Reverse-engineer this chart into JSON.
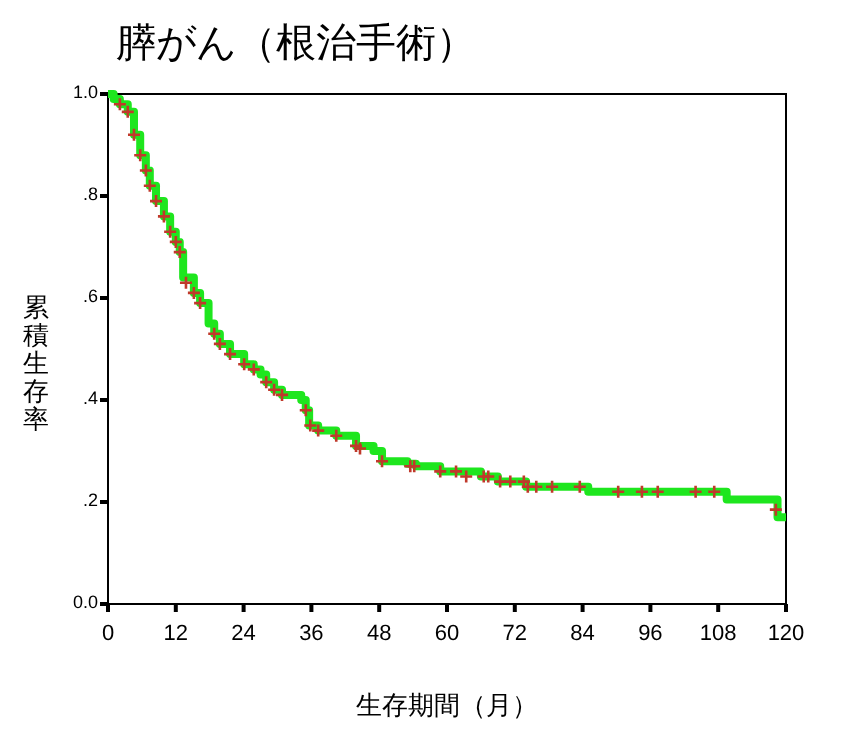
{
  "chart_data": {
    "type": "step",
    "title": "膵がん（根治手術）",
    "xlabel": "生存期間（月）",
    "ylabel": "累積生存率",
    "xlim": [
      0,
      120
    ],
    "ylim": [
      0,
      1
    ],
    "xticks": [
      0,
      12,
      24,
      36,
      48,
      60,
      72,
      84,
      96,
      108,
      120
    ],
    "yticks": [
      {
        "value": 0,
        "label": "0.0"
      },
      {
        "value": 0.2,
        "label": ".2"
      },
      {
        "value": 0.4,
        "label": ".4"
      },
      {
        "value": 0.6,
        "label": ".6"
      },
      {
        "value": 0.8,
        "label": ".8"
      },
      {
        "value": 1,
        "label": "1.0"
      }
    ],
    "series": [
      {
        "color": "#1ee61e",
        "x": [
          0,
          1,
          2.1,
          3.5,
          4.6,
          5.7,
          6.7,
          7.4,
          8.5,
          9.9,
          11,
          12,
          12.7,
          13.3,
          15.2,
          16.3,
          17.8,
          18.8,
          19.8,
          21.6,
          24.1,
          25.8,
          27,
          28,
          29.4,
          30.8,
          34.2,
          35,
          35.6,
          37.2,
          40.4,
          43.9,
          47,
          48.5,
          53,
          54.5,
          58.8,
          62.5,
          66,
          69,
          74,
          84.5,
          85,
          108.5,
          109.5,
          117.5,
          118.5,
          120
        ],
        "values": [
          1,
          0.99,
          0.98,
          0.965,
          0.92,
          0.88,
          0.85,
          0.82,
          0.79,
          0.76,
          0.73,
          0.71,
          0.69,
          0.64,
          0.61,
          0.59,
          0.55,
          0.53,
          0.51,
          0.49,
          0.47,
          0.46,
          0.45,
          0.435,
          0.42,
          0.41,
          0.4,
          0.38,
          0.35,
          0.34,
          0.33,
          0.31,
          0.3,
          0.28,
          0.275,
          0.27,
          0.26,
          0.26,
          0.25,
          0.24,
          0.23,
          0.23,
          0.22,
          0.22,
          0.205,
          0.205,
          0.17,
          0.17
        ]
      },
      {
        "type": "scatter",
        "color": "#c0392b",
        "marker": "cross",
        "x": [
          2.1,
          3.5,
          4.6,
          5.7,
          6.7,
          7.4,
          8.5,
          9.9,
          11,
          12,
          12.7,
          13.8,
          15.2,
          16.3,
          18.8,
          19.8,
          21.6,
          24.1,
          25.8,
          28,
          29.4,
          30.8,
          35,
          35.8,
          37.2,
          40.4,
          43.9,
          44.6,
          48.5,
          53.5,
          54.2,
          58.8,
          61.6,
          63.4,
          66.5,
          67.3,
          69.4,
          71.2,
          73.6,
          74.3,
          75.8,
          78.6,
          83.5,
          90.3,
          94.5,
          97.3,
          104,
          107.3,
          118.2
        ],
        "values": [
          0.98,
          0.965,
          0.92,
          0.88,
          0.85,
          0.82,
          0.79,
          0.76,
          0.73,
          0.71,
          0.69,
          0.63,
          0.61,
          0.59,
          0.53,
          0.51,
          0.49,
          0.47,
          0.46,
          0.435,
          0.42,
          0.41,
          0.38,
          0.35,
          0.34,
          0.33,
          0.31,
          0.305,
          0.28,
          0.27,
          0.27,
          0.26,
          0.26,
          0.25,
          0.25,
          0.25,
          0.24,
          0.24,
          0.24,
          0.23,
          0.23,
          0.23,
          0.23,
          0.22,
          0.22,
          0.22,
          0.22,
          0.22,
          0.185
        ]
      }
    ]
  }
}
